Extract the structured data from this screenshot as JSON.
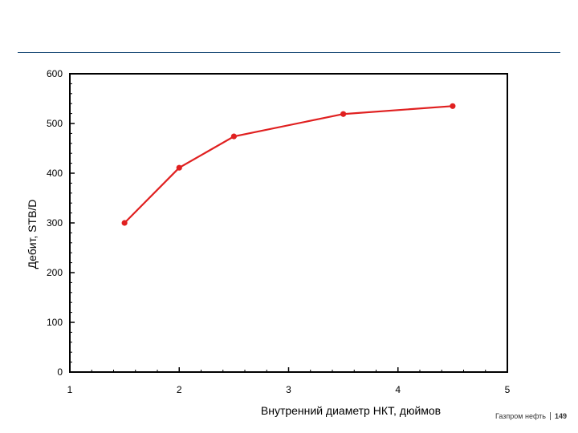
{
  "footer": {
    "company": "Газпром нефть",
    "page_number": "149"
  },
  "colors": {
    "series": "#e02020",
    "rule": "#1f4e79",
    "axis": "#000000"
  },
  "chart_data": {
    "type": "line",
    "title": "",
    "xlabel": "Внутренний диаметр НКТ, дюймов",
    "ylabel": "Дебит, STB/D",
    "xlim": [
      1,
      5
    ],
    "ylim": [
      0,
      600
    ],
    "x_ticks": [
      1,
      2,
      3,
      4,
      5
    ],
    "y_ticks": [
      0,
      100,
      200,
      300,
      400,
      500,
      600
    ],
    "x_tick_labels": [
      "1",
      "2",
      "3",
      "4",
      "5"
    ],
    "y_tick_labels": [
      "0",
      "100",
      "200",
      "300",
      "400",
      "500",
      "600"
    ],
    "grid": false,
    "legend": "none",
    "series": [
      {
        "x": [
          1.5,
          2.0,
          2.5,
          3.5,
          4.5
        ],
        "y": [
          300,
          411,
          474,
          519,
          535
        ]
      }
    ]
  }
}
